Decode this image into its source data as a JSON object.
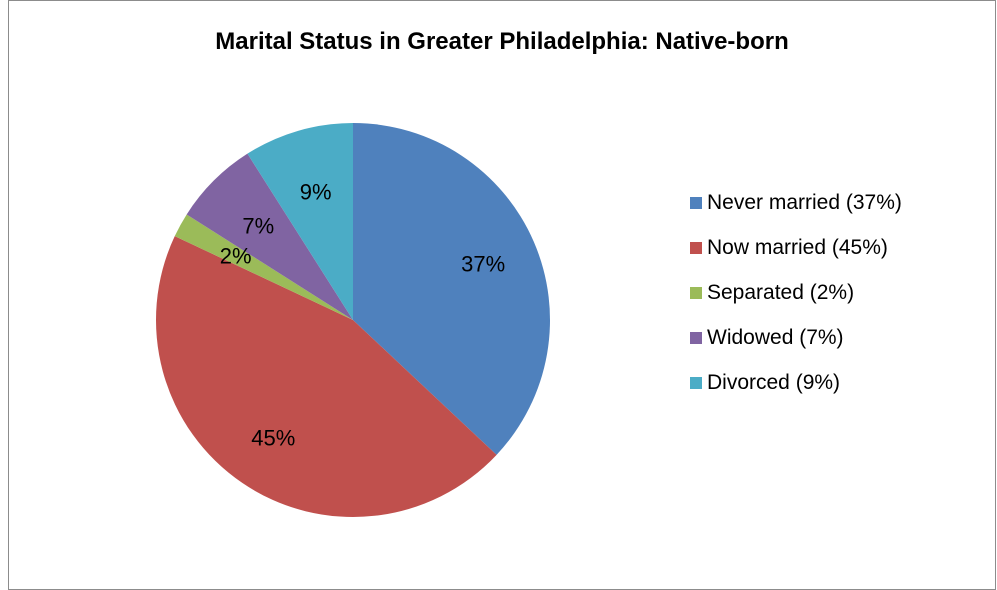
{
  "chart_data": {
    "type": "pie",
    "title": "Marital Status in Greater Philadelphia: Native-born",
    "categories": [
      "Never married",
      "Now married",
      "Separated",
      "Widowed",
      "Divorced"
    ],
    "values": [
      37,
      45,
      2,
      7,
      9
    ],
    "data_labels": [
      "37%",
      "45%",
      "2%",
      "7%",
      "9%"
    ],
    "legend": [
      "Never married (37%)",
      "Now married (45%)",
      "Separated (2%)",
      "Widowed (7%)",
      "Divorced (9%)"
    ],
    "legend_position": "right",
    "colors": [
      "#4f81bd",
      "#c0504d",
      "#9bbb59",
      "#8064a2",
      "#4bacc6"
    ]
  }
}
